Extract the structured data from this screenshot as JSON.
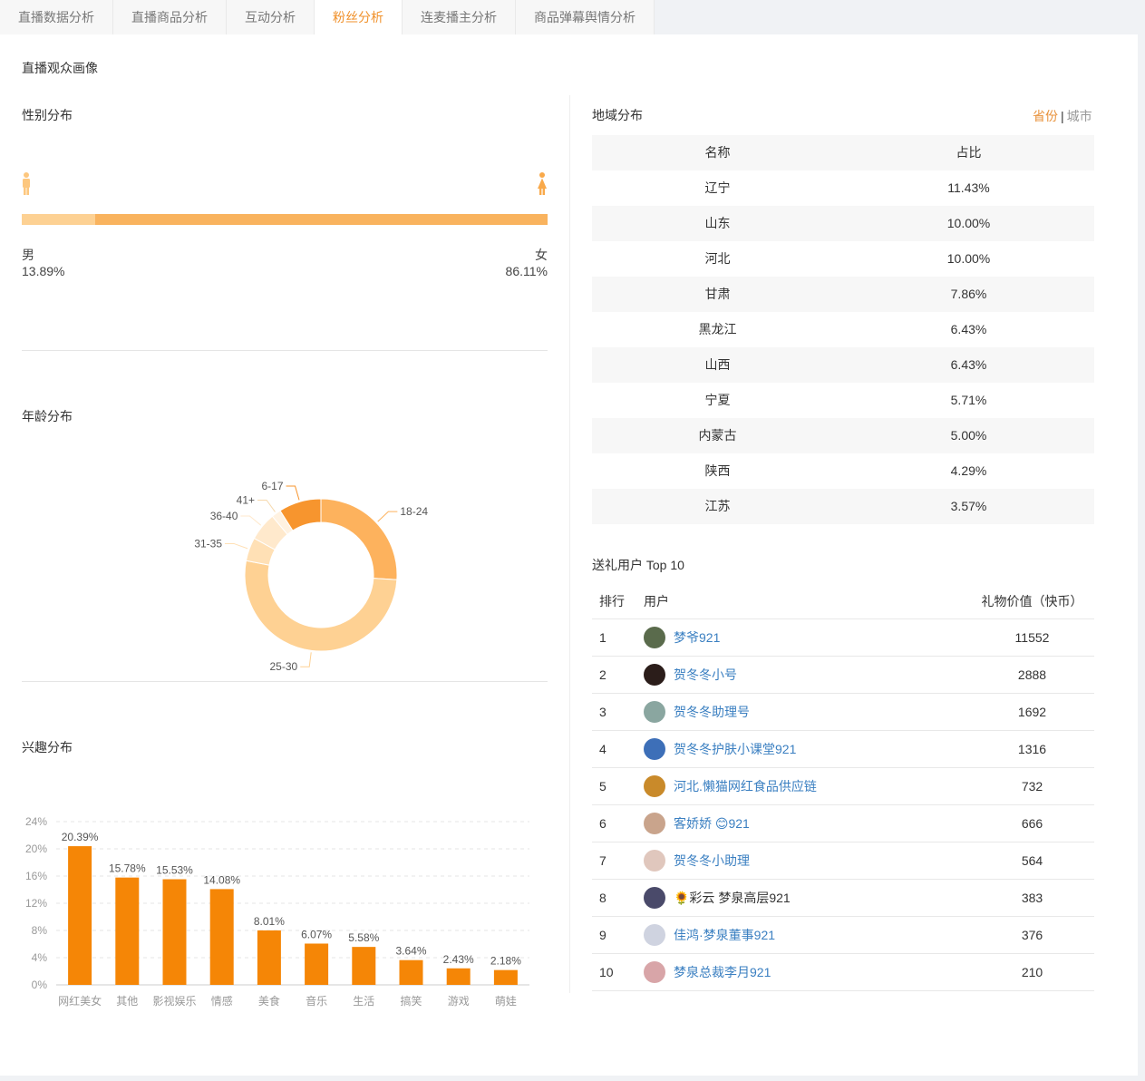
{
  "tabs": [
    {
      "label": "直播数据分析",
      "active": false
    },
    {
      "label": "直播商品分析",
      "active": false
    },
    {
      "label": "互动分析",
      "active": false
    },
    {
      "label": "粉丝分析",
      "active": true
    },
    {
      "label": "连麦播主分析",
      "active": false
    },
    {
      "label": "商品弹幕舆情分析",
      "active": false
    }
  ],
  "page_title": "直播观众画像",
  "gender": {
    "title": "性别分布",
    "male_label": "男",
    "male_pct": "13.89%",
    "male_share": 0.1389,
    "female_label": "女",
    "female_pct": "86.11%",
    "colors": {
      "male": "#fdd193",
      "female": "#f9b35e"
    }
  },
  "age": {
    "title": "年龄分布"
  },
  "interest": {
    "title": "兴趣分布"
  },
  "region": {
    "title": "地域分布",
    "toggle_province": "省份",
    "toggle_sep": "|",
    "toggle_city": "城市",
    "header": {
      "name": "名称",
      "share": "占比"
    },
    "rows": [
      {
        "name": "辽宁",
        "share": "11.43%"
      },
      {
        "name": "山东",
        "share": "10.00%"
      },
      {
        "name": "河北",
        "share": "10.00%"
      },
      {
        "name": "甘肃",
        "share": "7.86%"
      },
      {
        "name": "黑龙江",
        "share": "6.43%"
      },
      {
        "name": "山西",
        "share": "6.43%"
      },
      {
        "name": "宁夏",
        "share": "5.71%"
      },
      {
        "name": "内蒙古",
        "share": "5.00%"
      },
      {
        "name": "陕西",
        "share": "4.29%"
      },
      {
        "name": "江苏",
        "share": "3.57%"
      }
    ]
  },
  "gifts": {
    "title": "送礼用户 Top 10",
    "header": {
      "rank": "排行",
      "user": "用户",
      "value": "礼物价值（快币）"
    },
    "rows": [
      {
        "rank": "1",
        "name": "梦爷921",
        "value": "11552",
        "avatar_color": "#5a6b4c"
      },
      {
        "rank": "2",
        "name": "贺冬冬小号",
        "value": "2888",
        "avatar_color": "#2b1d1a"
      },
      {
        "rank": "3",
        "name": "贺冬冬助理号",
        "value": "1692",
        "avatar_color": "#8aa6a0"
      },
      {
        "rank": "4",
        "name": "贺冬冬护肤小课堂921",
        "value": "1316",
        "avatar_color": "#3d6fb8"
      },
      {
        "rank": "5",
        "name": "河北.懒猫网红食品供应链",
        "value": "732",
        "avatar_color": "#c98a2a"
      },
      {
        "rank": "6",
        "name": "客娇娇 😊921",
        "value": "666",
        "avatar_color": "#c9a48c"
      },
      {
        "rank": "7",
        "name": "贺冬冬小助理",
        "value": "564",
        "avatar_color": "#e0c7bd"
      },
      {
        "rank": "8",
        "name": "🌻彩云 梦泉高层921",
        "value": "383",
        "avatar_color": "#4a4a6a"
      },
      {
        "rank": "9",
        "name": "佳鸿·梦泉董事921",
        "value": "376",
        "avatar_color": "#cfd3e0"
      },
      {
        "rank": "10",
        "name": "梦泉总裁李月921",
        "value": "210",
        "avatar_color": "#d8a5a8"
      }
    ]
  },
  "chart_data": [
    {
      "type": "pie",
      "variant": "donut",
      "slices": [
        {
          "label": "18-24",
          "value": 26,
          "color": "#fdb25d"
        },
        {
          "label": "25-30",
          "value": 52,
          "color": "#fed193"
        },
        {
          "label": "31-35",
          "value": 5,
          "color": "#ffe0b5"
        },
        {
          "label": "36-40",
          "value": 6,
          "color": "#ffe9cc"
        },
        {
          "label": "41+",
          "value": 2,
          "color": "#fff2e1"
        },
        {
          "label": "6-17",
          "value": 9,
          "color": "#f7952e"
        }
      ]
    },
    {
      "type": "bar",
      "categories": [
        "网红美女",
        "其他",
        "影视娱乐",
        "情感",
        "美食",
        "音乐",
        "生活",
        "搞笑",
        "游戏",
        "萌娃"
      ],
      "values": [
        20.39,
        15.78,
        15.53,
        14.08,
        8.01,
        6.07,
        5.58,
        3.64,
        2.43,
        2.18
      ],
      "value_labels": [
        "20.39%",
        "15.78%",
        "15.53%",
        "14.08%",
        "8.01%",
        "6.07%",
        "5.58%",
        "3.64%",
        "2.43%",
        "2.18%"
      ],
      "yticks": [
        "0%",
        "4%",
        "8%",
        "12%",
        "16%",
        "20%",
        "24%"
      ],
      "ylim": [
        0,
        24
      ],
      "grid": true,
      "color": "#f58606"
    }
  ]
}
